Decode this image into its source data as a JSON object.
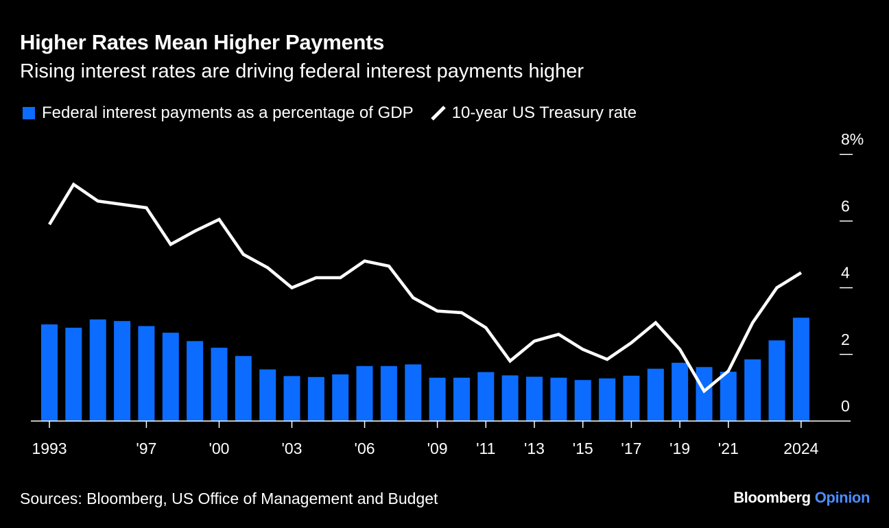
{
  "header": {
    "title": "Higher Rates Mean Higher Payments",
    "subtitle": "Rising interest rates are driving federal interest payments higher"
  },
  "legend": {
    "bar_label": "Federal interest payments as a percentage of GDP",
    "line_label": "10-year US Treasury rate"
  },
  "footer": {
    "source": "Sources: Bloomberg, US Office of Management and Budget",
    "brand_1": "Bloomberg",
    "brand_2": "Opinion"
  },
  "colors": {
    "bar": "#0b6cff",
    "line": "#ffffff",
    "background": "#000000",
    "brand_accent": "#4c8dff"
  },
  "chart_data": {
    "type": "bar+line",
    "x": [
      1993,
      1994,
      1995,
      1996,
      1997,
      1998,
      1999,
      2000,
      2001,
      2002,
      2003,
      2004,
      2005,
      2006,
      2007,
      2008,
      2009,
      2010,
      2011,
      2012,
      2013,
      2014,
      2015,
      2016,
      2017,
      2018,
      2019,
      2020,
      2021,
      2022,
      2023,
      2024
    ],
    "x_tick_labels": [
      {
        "x": 1993,
        "label": "1993"
      },
      {
        "x": 1997,
        "label": "'97"
      },
      {
        "x": 2000,
        "label": "'00"
      },
      {
        "x": 2003,
        "label": "'03"
      },
      {
        "x": 2006,
        "label": "'06"
      },
      {
        "x": 2009,
        "label": "'09"
      },
      {
        "x": 2011,
        "label": "'11"
      },
      {
        "x": 2013,
        "label": "'13"
      },
      {
        "x": 2015,
        "label": "'15"
      },
      {
        "x": 2017,
        "label": "'17"
      },
      {
        "x": 2019,
        "label": "'19"
      },
      {
        "x": 2021,
        "label": "'21"
      },
      {
        "x": 2024,
        "label": "2024"
      }
    ],
    "y_ticks": [
      {
        "value": 0,
        "label": "0"
      },
      {
        "value": 2,
        "label": "2"
      },
      {
        "value": 4,
        "label": "4"
      },
      {
        "value": 6,
        "label": "6"
      },
      {
        "value": 8,
        "label": "8%"
      }
    ],
    "ylim": [
      0,
      8
    ],
    "series": [
      {
        "name": "Federal interest payments as a percentage of GDP",
        "type": "bar",
        "values": [
          2.9,
          2.8,
          3.05,
          3.0,
          2.85,
          2.65,
          2.4,
          2.2,
          1.95,
          1.55,
          1.35,
          1.32,
          1.4,
          1.65,
          1.65,
          1.7,
          1.3,
          1.3,
          1.47,
          1.37,
          1.33,
          1.3,
          1.23,
          1.28,
          1.36,
          1.57,
          1.75,
          1.62,
          1.48,
          1.85,
          2.42,
          3.1
        ]
      },
      {
        "name": "10-year US Treasury rate",
        "type": "line",
        "values": [
          5.9,
          7.1,
          6.6,
          6.5,
          6.4,
          5.3,
          5.7,
          6.05,
          5.0,
          4.6,
          4.0,
          4.3,
          4.3,
          4.8,
          4.65,
          3.7,
          3.3,
          3.25,
          2.8,
          1.8,
          2.4,
          2.6,
          2.15,
          1.85,
          2.35,
          2.95,
          2.15,
          0.9,
          1.5,
          2.95,
          4.0,
          4.45
        ]
      }
    ]
  }
}
